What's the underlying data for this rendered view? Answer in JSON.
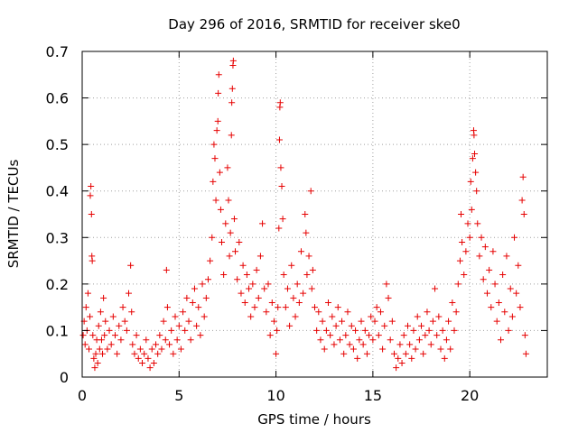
{
  "chart_data": {
    "type": "scatter",
    "title": "Day 296 of 2016, SRMTID for receiver ske0",
    "xlabel": "GPS time / hours",
    "ylabel": "SRMTID / TECUs",
    "xlim": [
      0,
      24
    ],
    "ylim": [
      0,
      0.7
    ],
    "xticks": [
      0,
      5,
      10,
      15,
      20
    ],
    "xtick_labels": [
      "0",
      "5",
      "10",
      "15",
      "20"
    ],
    "yticks": [
      0,
      0.1,
      0.2,
      0.3,
      0.4,
      0.5,
      0.6,
      0.7
    ],
    "ytick_labels": [
      "0",
      "0.1",
      "0.2",
      "0.3",
      "0.4",
      "0.5",
      "0.6",
      "0.7"
    ],
    "grid": true,
    "marker": "+",
    "color": "#e60000",
    "series": [
      {
        "name": "SRMTID",
        "points": [
          [
            0.05,
            0.09
          ],
          [
            0.1,
            0.12
          ],
          [
            0.15,
            0.07
          ],
          [
            0.2,
            0.15
          ],
          [
            0.25,
            0.1
          ],
          [
            0.3,
            0.18
          ],
          [
            0.35,
            0.06
          ],
          [
            0.4,
            0.13
          ],
          [
            0.42,
            0.39
          ],
          [
            0.45,
            0.41
          ],
          [
            0.48,
            0.35
          ],
          [
            0.5,
            0.26
          ],
          [
            0.52,
            0.25
          ],
          [
            0.55,
            0.09
          ],
          [
            0.6,
            0.04
          ],
          [
            0.65,
            0.02
          ],
          [
            0.7,
            0.05
          ],
          [
            0.75,
            0.08
          ],
          [
            0.8,
            0.03
          ],
          [
            0.85,
            0.11
          ],
          [
            0.9,
            0.06
          ],
          [
            0.95,
            0.14
          ],
          [
            1.0,
            0.08
          ],
          [
            1.05,
            0.05
          ],
          [
            1.1,
            0.17
          ],
          [
            1.15,
            0.09
          ],
          [
            1.2,
            0.12
          ],
          [
            1.3,
            0.06
          ],
          [
            1.4,
            0.1
          ],
          [
            1.5,
            0.07
          ],
          [
            1.6,
            0.13
          ],
          [
            1.7,
            0.09
          ],
          [
            1.8,
            0.05
          ],
          [
            1.9,
            0.11
          ],
          [
            2.0,
            0.08
          ],
          [
            2.1,
            0.15
          ],
          [
            2.2,
            0.12
          ],
          [
            2.3,
            0.1
          ],
          [
            2.4,
            0.18
          ],
          [
            2.5,
            0.24
          ],
          [
            2.55,
            0.14
          ],
          [
            2.6,
            0.07
          ],
          [
            2.7,
            0.05
          ],
          [
            2.8,
            0.09
          ],
          [
            2.9,
            0.04
          ],
          [
            3.0,
            0.06
          ],
          [
            3.1,
            0.03
          ],
          [
            3.2,
            0.05
          ],
          [
            3.3,
            0.08
          ],
          [
            3.4,
            0.04
          ],
          [
            3.5,
            0.02
          ],
          [
            3.6,
            0.06
          ],
          [
            3.7,
            0.03
          ],
          [
            3.8,
            0.07
          ],
          [
            3.9,
            0.05
          ],
          [
            4.0,
            0.09
          ],
          [
            4.1,
            0.06
          ],
          [
            4.2,
            0.12
          ],
          [
            4.3,
            0.08
          ],
          [
            4.35,
            0.23
          ],
          [
            4.4,
            0.15
          ],
          [
            4.5,
            0.07
          ],
          [
            4.6,
            0.1
          ],
          [
            4.7,
            0.05
          ],
          [
            4.8,
            0.13
          ],
          [
            4.9,
            0.08
          ],
          [
            5.0,
            0.11
          ],
          [
            5.1,
            0.06
          ],
          [
            5.2,
            0.14
          ],
          [
            5.3,
            0.1
          ],
          [
            5.4,
            0.17
          ],
          [
            5.5,
            0.12
          ],
          [
            5.6,
            0.08
          ],
          [
            5.7,
            0.16
          ],
          [
            5.8,
            0.19
          ],
          [
            5.9,
            0.11
          ],
          [
            6.0,
            0.15
          ],
          [
            6.1,
            0.09
          ],
          [
            6.2,
            0.2
          ],
          [
            6.3,
            0.13
          ],
          [
            6.4,
            0.17
          ],
          [
            6.5,
            0.21
          ],
          [
            6.6,
            0.25
          ],
          [
            6.7,
            0.3
          ],
          [
            6.75,
            0.42
          ],
          [
            6.8,
            0.5
          ],
          [
            6.85,
            0.47
          ],
          [
            6.9,
            0.38
          ],
          [
            6.95,
            0.53
          ],
          [
            7.0,
            0.55
          ],
          [
            7.02,
            0.61
          ],
          [
            7.05,
            0.65
          ],
          [
            7.1,
            0.44
          ],
          [
            7.15,
            0.36
          ],
          [
            7.2,
            0.29
          ],
          [
            7.3,
            0.22
          ],
          [
            7.4,
            0.33
          ],
          [
            7.5,
            0.45
          ],
          [
            7.55,
            0.38
          ],
          [
            7.6,
            0.26
          ],
          [
            7.65,
            0.31
          ],
          [
            7.7,
            0.52
          ],
          [
            7.72,
            0.59
          ],
          [
            7.75,
            0.62
          ],
          [
            7.78,
            0.67
          ],
          [
            7.8,
            0.68
          ],
          [
            7.85,
            0.34
          ],
          [
            7.9,
            0.27
          ],
          [
            8.0,
            0.21
          ],
          [
            8.1,
            0.29
          ],
          [
            8.2,
            0.18
          ],
          [
            8.3,
            0.24
          ],
          [
            8.4,
            0.16
          ],
          [
            8.5,
            0.22
          ],
          [
            8.6,
            0.19
          ],
          [
            8.7,
            0.13
          ],
          [
            8.8,
            0.2
          ],
          [
            8.9,
            0.15
          ],
          [
            9.0,
            0.23
          ],
          [
            9.1,
            0.17
          ],
          [
            9.2,
            0.26
          ],
          [
            9.3,
            0.33
          ],
          [
            9.4,
            0.19
          ],
          [
            9.5,
            0.14
          ],
          [
            9.6,
            0.2
          ],
          [
            9.7,
            0.09
          ],
          [
            9.8,
            0.16
          ],
          [
            9.9,
            0.12
          ],
          [
            10.0,
            0.05
          ],
          [
            10.05,
            0.1
          ],
          [
            10.1,
            0.15
          ],
          [
            10.15,
            0.32
          ],
          [
            10.18,
            0.51
          ],
          [
            10.2,
            0.58
          ],
          [
            10.22,
            0.59
          ],
          [
            10.25,
            0.45
          ],
          [
            10.3,
            0.41
          ],
          [
            10.35,
            0.34
          ],
          [
            10.4,
            0.22
          ],
          [
            10.5,
            0.15
          ],
          [
            10.6,
            0.19
          ],
          [
            10.7,
            0.11
          ],
          [
            10.8,
            0.24
          ],
          [
            10.9,
            0.17
          ],
          [
            11.0,
            0.13
          ],
          [
            11.1,
            0.2
          ],
          [
            11.2,
            0.16
          ],
          [
            11.3,
            0.27
          ],
          [
            11.4,
            0.18
          ],
          [
            11.5,
            0.35
          ],
          [
            11.55,
            0.31
          ],
          [
            11.6,
            0.22
          ],
          [
            11.7,
            0.26
          ],
          [
            11.8,
            0.4
          ],
          [
            11.85,
            0.19
          ],
          [
            11.9,
            0.23
          ],
          [
            12.0,
            0.15
          ],
          [
            12.1,
            0.1
          ],
          [
            12.2,
            0.14
          ],
          [
            12.3,
            0.08
          ],
          [
            12.4,
            0.12
          ],
          [
            12.5,
            0.06
          ],
          [
            12.6,
            0.1
          ],
          [
            12.7,
            0.16
          ],
          [
            12.8,
            0.09
          ],
          [
            12.9,
            0.13
          ],
          [
            13.0,
            0.07
          ],
          [
            13.1,
            0.11
          ],
          [
            13.2,
            0.15
          ],
          [
            13.3,
            0.08
          ],
          [
            13.4,
            0.12
          ],
          [
            13.5,
            0.05
          ],
          [
            13.6,
            0.09
          ],
          [
            13.7,
            0.14
          ],
          [
            13.8,
            0.07
          ],
          [
            13.9,
            0.11
          ],
          [
            14.0,
            0.06
          ],
          [
            14.1,
            0.1
          ],
          [
            14.2,
            0.04
          ],
          [
            14.3,
            0.08
          ],
          [
            14.4,
            0.12
          ],
          [
            14.5,
            0.07
          ],
          [
            14.6,
            0.1
          ],
          [
            14.7,
            0.05
          ],
          [
            14.8,
            0.09
          ],
          [
            14.9,
            0.13
          ],
          [
            15.0,
            0.08
          ],
          [
            15.1,
            0.12
          ],
          [
            15.2,
            0.15
          ],
          [
            15.3,
            0.09
          ],
          [
            15.4,
            0.14
          ],
          [
            15.5,
            0.06
          ],
          [
            15.6,
            0.11
          ],
          [
            15.7,
            0.2
          ],
          [
            15.8,
            0.17
          ],
          [
            15.9,
            0.08
          ],
          [
            16.0,
            0.12
          ],
          [
            16.1,
            0.05
          ],
          [
            16.2,
            0.02
          ],
          [
            16.3,
            0.04
          ],
          [
            16.4,
            0.07
          ],
          [
            16.5,
            0.03
          ],
          [
            16.6,
            0.09
          ],
          [
            16.7,
            0.05
          ],
          [
            16.8,
            0.11
          ],
          [
            16.9,
            0.07
          ],
          [
            17.0,
            0.04
          ],
          [
            17.1,
            0.1
          ],
          [
            17.2,
            0.06
          ],
          [
            17.3,
            0.13
          ],
          [
            17.4,
            0.08
          ],
          [
            17.5,
            0.11
          ],
          [
            17.6,
            0.05
          ],
          [
            17.7,
            0.09
          ],
          [
            17.8,
            0.14
          ],
          [
            17.9,
            0.1
          ],
          [
            18.0,
            0.07
          ],
          [
            18.1,
            0.12
          ],
          [
            18.2,
            0.19
          ],
          [
            18.3,
            0.09
          ],
          [
            18.4,
            0.13
          ],
          [
            18.5,
            0.06
          ],
          [
            18.6,
            0.1
          ],
          [
            18.7,
            0.04
          ],
          [
            18.8,
            0.08
          ],
          [
            18.9,
            0.12
          ],
          [
            19.0,
            0.06
          ],
          [
            19.1,
            0.16
          ],
          [
            19.2,
            0.1
          ],
          [
            19.3,
            0.14
          ],
          [
            19.4,
            0.2
          ],
          [
            19.5,
            0.25
          ],
          [
            19.55,
            0.35
          ],
          [
            19.6,
            0.29
          ],
          [
            19.7,
            0.22
          ],
          [
            19.8,
            0.27
          ],
          [
            19.9,
            0.33
          ],
          [
            20.0,
            0.3
          ],
          [
            20.05,
            0.42
          ],
          [
            20.1,
            0.36
          ],
          [
            20.15,
            0.47
          ],
          [
            20.2,
            0.53
          ],
          [
            20.22,
            0.52
          ],
          [
            20.25,
            0.48
          ],
          [
            20.3,
            0.44
          ],
          [
            20.35,
            0.4
          ],
          [
            20.4,
            0.33
          ],
          [
            20.5,
            0.26
          ],
          [
            20.6,
            0.3
          ],
          [
            20.7,
            0.21
          ],
          [
            20.8,
            0.28
          ],
          [
            20.9,
            0.18
          ],
          [
            21.0,
            0.23
          ],
          [
            21.1,
            0.15
          ],
          [
            21.2,
            0.27
          ],
          [
            21.3,
            0.2
          ],
          [
            21.4,
            0.12
          ],
          [
            21.5,
            0.16
          ],
          [
            21.6,
            0.08
          ],
          [
            21.7,
            0.22
          ],
          [
            21.8,
            0.14
          ],
          [
            21.9,
            0.26
          ],
          [
            22.0,
            0.1
          ],
          [
            22.1,
            0.19
          ],
          [
            22.2,
            0.13
          ],
          [
            22.3,
            0.3
          ],
          [
            22.4,
            0.18
          ],
          [
            22.5,
            0.24
          ],
          [
            22.6,
            0.15
          ],
          [
            22.7,
            0.38
          ],
          [
            22.75,
            0.43
          ],
          [
            22.8,
            0.35
          ],
          [
            22.85,
            0.09
          ],
          [
            22.9,
            0.05
          ]
        ]
      }
    ]
  }
}
